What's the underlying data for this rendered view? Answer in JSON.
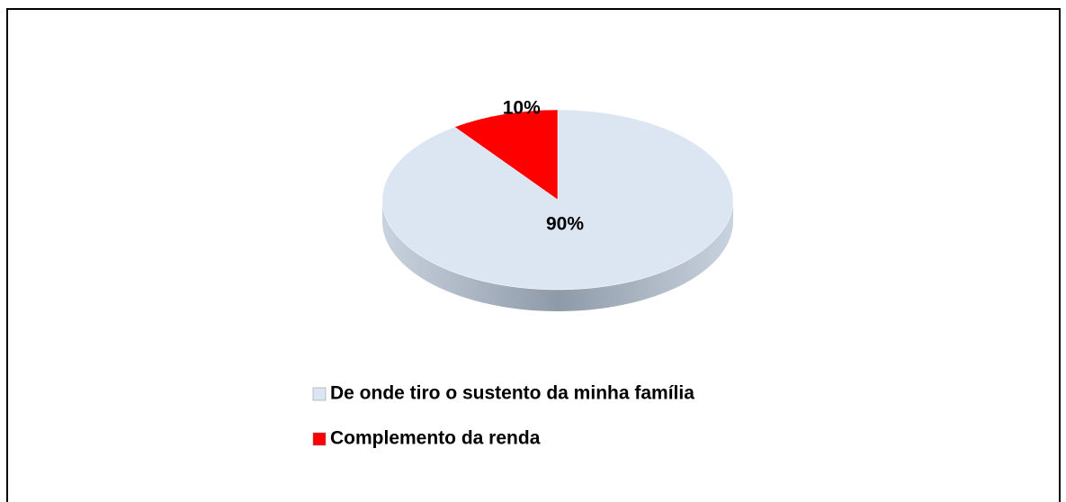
{
  "chart_data": {
    "type": "pie",
    "categories": [
      "De onde tiro o sustento da minha família",
      "Complemento da renda"
    ],
    "values": [
      90,
      10
    ],
    "value_labels": [
      "90%",
      "10%"
    ],
    "colors": [
      "#dce6f2",
      "#ff0000"
    ],
    "legend": "bottom"
  }
}
